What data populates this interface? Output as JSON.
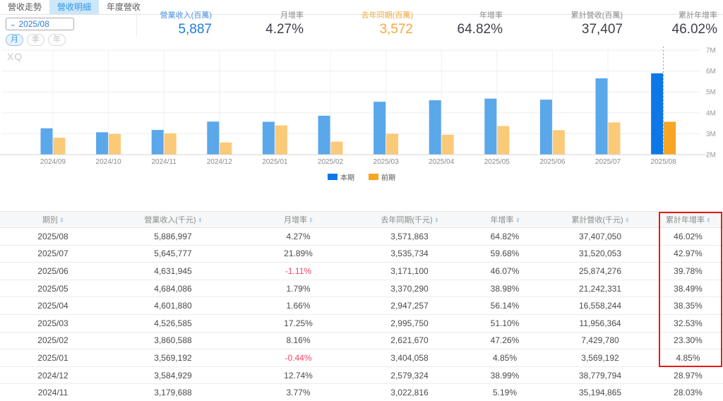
{
  "tabs": [
    {
      "label": "營收走勢",
      "active": false
    },
    {
      "label": "營收明細",
      "active": true
    },
    {
      "label": "年度營收",
      "active": false
    }
  ],
  "controls": {
    "period_select_value": "2025/08",
    "granularity": [
      {
        "label": "月",
        "active": true
      },
      {
        "label": "季",
        "active": false
      },
      {
        "label": "年",
        "active": false
      }
    ]
  },
  "stats": [
    {
      "label": "營業收入(百萬)",
      "value": "5,887",
      "style": "blue"
    },
    {
      "label": "月增率",
      "value": "4.27%",
      "style": "dark"
    },
    {
      "label": "去年同期(百萬)",
      "value": "3,572",
      "style": "orange"
    },
    {
      "label": "年增率",
      "value": "64.82%",
      "style": "dark"
    },
    {
      "label": "累計營收(百萬)",
      "value": "37,407",
      "style": "dark"
    },
    {
      "label": "累計年增率",
      "value": "46.02%",
      "style": "dark"
    }
  ],
  "watermark": "XQ",
  "chart_data": {
    "type": "bar",
    "title": "",
    "categories": [
      "2024/09",
      "2024/10",
      "2024/11",
      "2024/12",
      "2025/01",
      "2025/02",
      "2025/03",
      "2025/04",
      "2025/05",
      "2025/06",
      "2025/07",
      "2025/08"
    ],
    "series": [
      {
        "name": "本期",
        "color": "#5aa7ea",
        "highlight_color": "#0c78e8",
        "values": [
          3.26,
          3.07,
          3.18,
          3.58,
          3.57,
          3.86,
          4.53,
          4.6,
          4.68,
          4.63,
          5.65,
          5.89
        ]
      },
      {
        "name": "前期",
        "color": "#fbca79",
        "highlight_color": "#f6a623",
        "values": [
          2.81,
          2.99,
          3.02,
          2.58,
          3.4,
          2.62,
          3.0,
          2.95,
          3.37,
          3.17,
          3.54,
          3.57
        ]
      }
    ],
    "unit": "M",
    "ylim": [
      2,
      7
    ],
    "yticks": [
      "2M",
      "3M",
      "4M",
      "5M",
      "6M",
      "7M"
    ],
    "yaxis_side": "right",
    "grid": true,
    "highlight_index": 11,
    "legend_position": "bottom"
  },
  "table": {
    "headers": [
      "期別",
      "營業收入(千元)",
      "月增率",
      "去年同期(千元)",
      "年增率",
      "累計營收(千元)",
      "累計年增率"
    ],
    "rows": [
      [
        "2025/08",
        "5,886,997",
        "4.27%",
        "3,571,863",
        "64.82%",
        "37,407,050",
        "46.02%"
      ],
      [
        "2025/07",
        "5,645,777",
        "21.89%",
        "3,535,734",
        "59.68%",
        "31,520,053",
        "42.97%"
      ],
      [
        "2025/06",
        "4,631,945",
        "-1.11%",
        "3,171,100",
        "46.07%",
        "25,874,276",
        "39.78%"
      ],
      [
        "2025/05",
        "4,684,086",
        "1.79%",
        "3,370,290",
        "38.98%",
        "21,242,331",
        "38.49%"
      ],
      [
        "2025/04",
        "4,601,880",
        "1.66%",
        "2,947,257",
        "56.14%",
        "16,558,244",
        "38.35%"
      ],
      [
        "2025/03",
        "4,526,585",
        "17.25%",
        "2,995,750",
        "51.10%",
        "11,956,364",
        "32.53%"
      ],
      [
        "2025/02",
        "3,860,588",
        "8.16%",
        "2,621,670",
        "47.26%",
        "7,429,780",
        "23.30%"
      ],
      [
        "2025/01",
        "3,569,192",
        "-0.44%",
        "3,404,058",
        "4.85%",
        "3,569,192",
        "4.85%"
      ],
      [
        "2024/12",
        "3,584,929",
        "12.74%",
        "2,579,324",
        "38.99%",
        "38,779,794",
        "28.97%"
      ],
      [
        "2024/11",
        "3,179,688",
        "3.77%",
        "3,022,816",
        "5.19%",
        "35,194,865",
        "28.03%"
      ]
    ]
  },
  "annotation": {
    "highlight_column": "累計年增率",
    "color": "#e51c15"
  },
  "colors": {
    "negative": "#f0465f",
    "stat_blue": "#1b7ce0",
    "stat_orange": "#f5a93c",
    "tab_active_bg": "#cde7fa"
  }
}
